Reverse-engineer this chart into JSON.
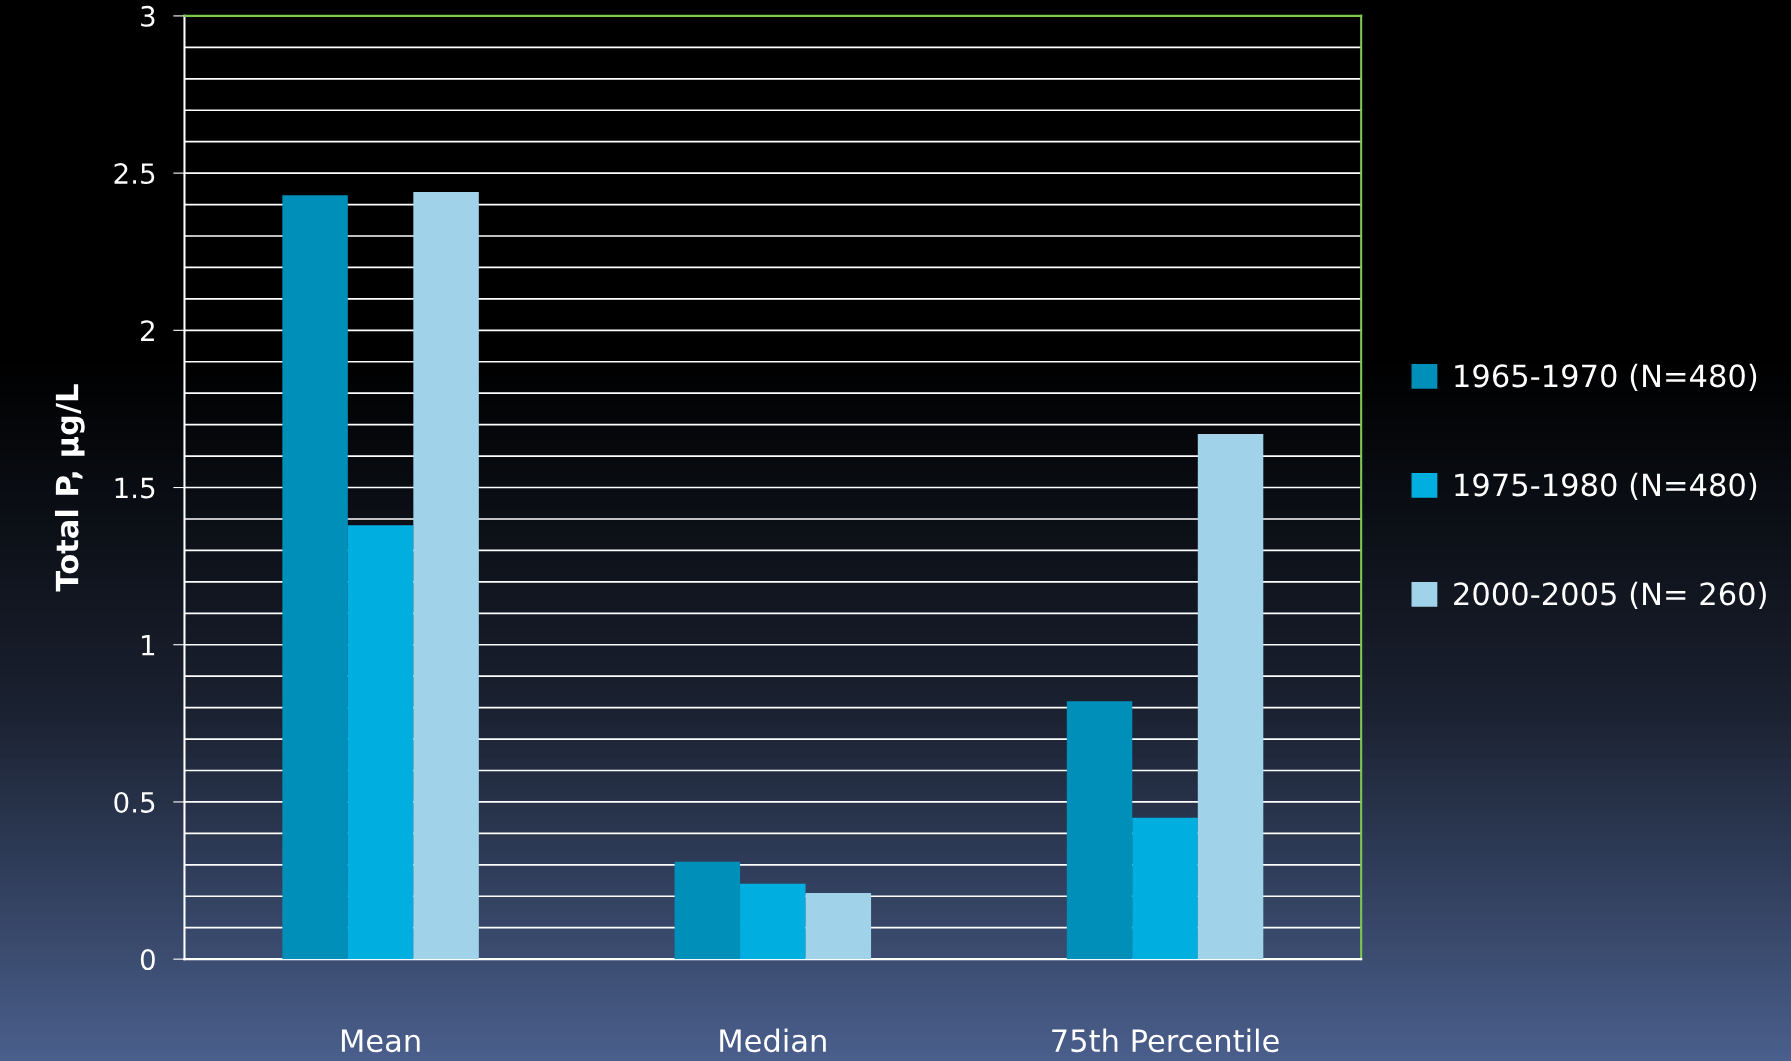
{
  "chart_data": {
    "type": "bar",
    "ylabel": "Total P, µg/L",
    "categories": [
      "Mean",
      "Median",
      "75th Percentile"
    ],
    "series": [
      {
        "name": "1965-1970 (N=480)",
        "color": "#008fb9",
        "values": [
          2.43,
          0.31,
          0.82
        ]
      },
      {
        "name": "1975-1980 (N=480)",
        "color": "#00aedf",
        "values": [
          1.38,
          0.24,
          0.45
        ]
      },
      {
        "name": "2000-2005 (N= 260)",
        "color": "#a0d2ea",
        "values": [
          2.44,
          0.21,
          1.67
        ]
      }
    ],
    "ylim": [
      0,
      3
    ],
    "yticks": [
      0,
      {
        "value": 0.1,
        "label": null
      },
      {
        "value": 0.2,
        "label": null
      },
      {
        "value": 0.3,
        "label": null
      },
      {
        "value": 0.4,
        "label": null
      },
      0.5,
      {
        "value": 0.6,
        "label": null
      },
      {
        "value": 0.7,
        "label": null
      },
      {
        "value": 0.8,
        "label": null
      },
      {
        "value": 0.9,
        "label": null
      },
      1,
      {
        "value": 1.1,
        "label": null
      },
      {
        "value": 1.2,
        "label": null
      },
      {
        "value": 1.3,
        "label": null
      },
      {
        "value": 1.4,
        "label": null
      },
      1.5,
      {
        "value": 1.6,
        "label": null
      },
      {
        "value": 1.7,
        "label": null
      },
      {
        "value": 1.8,
        "label": null
      },
      {
        "value": 1.9,
        "label": null
      },
      2,
      {
        "value": 2.1,
        "label": null
      },
      {
        "value": 2.2,
        "label": null
      },
      {
        "value": 2.3,
        "label": null
      },
      {
        "value": 2.4,
        "label": null
      },
      2.5,
      {
        "value": 2.6,
        "label": null
      },
      {
        "value": 2.7,
        "label": null
      },
      {
        "value": 2.8,
        "label": null
      },
      {
        "value": 2.9,
        "label": null
      },
      3
    ],
    "grid": "y",
    "legend": "right"
  }
}
